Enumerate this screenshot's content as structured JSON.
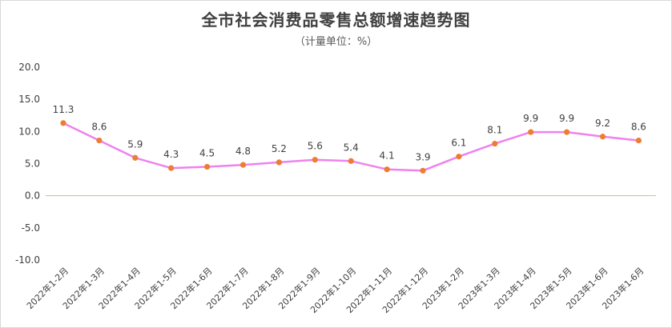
{
  "chart_data": {
    "type": "line",
    "title": "全市社会消费品零售总额增速趋势图",
    "subtitle": "（计量单位：%）",
    "xlabel": "",
    "ylabel": "",
    "categories": [
      "2022年1-2月",
      "2022年1-3月",
      "2022年1-4月",
      "2022年1-5月",
      "2022年1-6月",
      "2022年1-7月",
      "2022年1-8月",
      "2022年1-9月",
      "2022年1-10月",
      "2022年1-11月",
      "2022年1-12月",
      "2023年1-2月",
      "2023年1-3月",
      "2023年1-4月",
      "2023年1-5月",
      "2023年1-6月",
      "2023年1-6月"
    ],
    "series": [
      {
        "values": [
          11.3,
          8.6,
          5.9,
          4.3,
          4.5,
          4.8,
          5.2,
          5.6,
          5.4,
          4.1,
          3.9,
          6.1,
          8.1,
          9.9,
          9.9,
          9.2,
          8.6
        ]
      }
    ],
    "data_labels": [
      "11.3",
      "8.6",
      "5.9",
      "4.3",
      "4.5",
      "4.8",
      "5.2",
      "5.6",
      "5.4",
      "4.1",
      "3.9",
      "6.1",
      "8.1",
      "9.9",
      "9.9",
      "9.2",
      "8.6"
    ],
    "yticks": [
      "20.0",
      "15.0",
      "10.0",
      "5.0",
      "0.0",
      "-5.0",
      "-10.0"
    ],
    "ylim": [
      -10,
      20
    ],
    "grid": false,
    "legend": "none",
    "colors": {
      "line": "#ee82ee",
      "marker": "#ed7d31",
      "zero_line": "#a9d18e",
      "text": "#404040"
    }
  }
}
